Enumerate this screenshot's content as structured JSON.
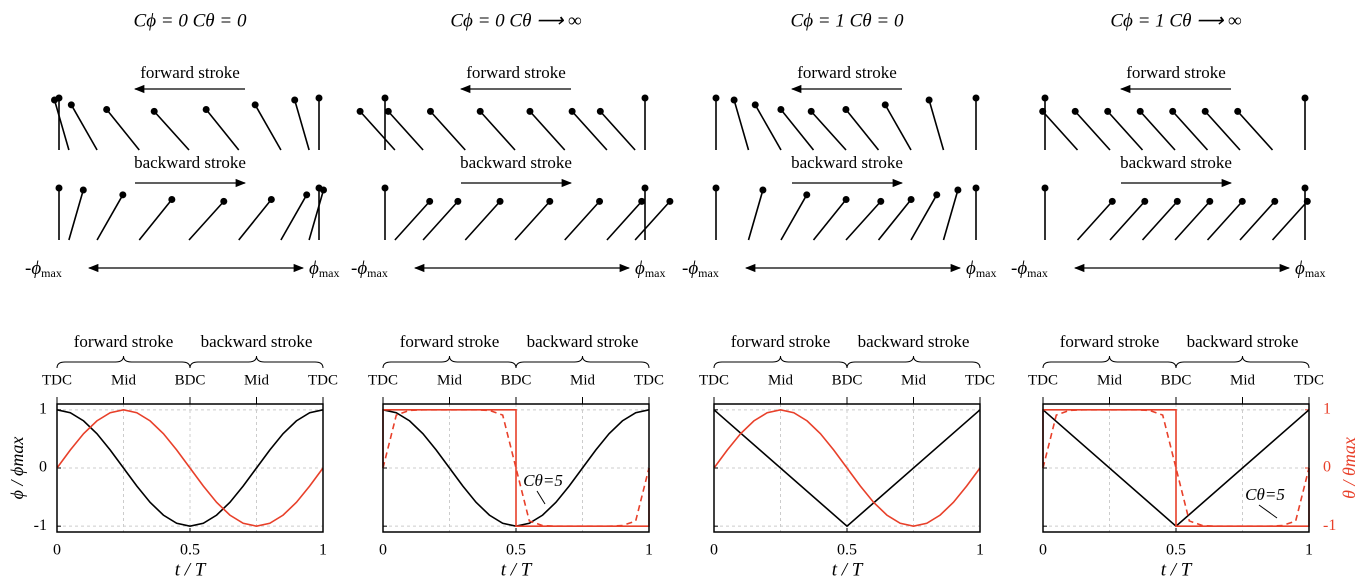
{
  "diagram": {
    "forward": "forward stroke",
    "backward": "backward stroke",
    "left": "-ϕ",
    "right": "ϕ",
    "sub": "max"
  },
  "chart_data": [
    {
      "type": "line",
      "title": "Cϕ = 0   Cθ = 0",
      "phases": [
        "forward stroke",
        "backward stroke"
      ],
      "xlim": [
        0,
        1
      ],
      "xticks": [
        0,
        0.5,
        1
      ],
      "x2ticks": [
        {
          "value": 0,
          "label": "TDC"
        },
        {
          "value": 0.25,
          "label": "Mid"
        },
        {
          "value": 0.5,
          "label": "BDC"
        },
        {
          "value": 0.75,
          "label": "Mid"
        },
        {
          "value": 1,
          "label": "TDC"
        }
      ],
      "xlabel": "t / T",
      "ylim": [
        -1.1,
        1.1
      ],
      "yticks": [
        -1,
        0,
        1
      ],
      "ytick_labels": true,
      "ylabel": "ϕ / ϕmax",
      "grid": true,
      "series": [
        {
          "color": "#000000",
          "x": [
            0,
            0.05,
            0.1,
            0.15,
            0.2,
            0.25,
            0.3,
            0.35,
            0.4,
            0.45,
            0.5,
            0.55,
            0.6,
            0.65,
            0.7,
            0.75,
            0.8,
            0.85,
            0.9,
            0.95,
            1
          ],
          "values": [
            1,
            0.95,
            0.81,
            0.59,
            0.31,
            0,
            -0.31,
            -0.59,
            -0.81,
            -0.95,
            -1,
            -0.95,
            -0.81,
            -0.59,
            -0.31,
            0,
            0.31,
            0.59,
            0.81,
            0.95,
            1
          ]
        },
        {
          "color": "#e8402a",
          "x": [
            0,
            0.05,
            0.1,
            0.15,
            0.2,
            0.25,
            0.3,
            0.35,
            0.4,
            0.45,
            0.5,
            0.55,
            0.6,
            0.65,
            0.7,
            0.75,
            0.8,
            0.85,
            0.9,
            0.95,
            1
          ],
          "values": [
            0,
            0.31,
            0.59,
            0.81,
            0.95,
            1,
            0.95,
            0.81,
            0.59,
            0.31,
            0,
            -0.31,
            -0.59,
            -0.81,
            -0.95,
            -1,
            -0.95,
            -0.81,
            -0.59,
            -0.31,
            0
          ]
        }
      ]
    },
    {
      "type": "line",
      "title": "Cϕ = 0   Cθ ⟶ ∞",
      "phases": [
        "forward stroke",
        "backward stroke"
      ],
      "xlim": [
        0,
        1
      ],
      "xticks": [
        0,
        0.5,
        1
      ],
      "x2ticks": [
        {
          "value": 0,
          "label": "TDC"
        },
        {
          "value": 0.25,
          "label": "Mid"
        },
        {
          "value": 0.5,
          "label": "BDC"
        },
        {
          "value": 0.75,
          "label": "Mid"
        },
        {
          "value": 1,
          "label": "TDC"
        }
      ],
      "xlabel": "t / T",
      "ylim": [
        -1.1,
        1.1
      ],
      "yticks": [
        -1,
        0,
        1
      ],
      "ytick_labels": false,
      "grid": true,
      "annotation": "Cθ=5",
      "series": [
        {
          "color": "#000000",
          "x": [
            0,
            0.05,
            0.1,
            0.15,
            0.2,
            0.25,
            0.3,
            0.35,
            0.4,
            0.45,
            0.5,
            0.55,
            0.6,
            0.65,
            0.7,
            0.75,
            0.8,
            0.85,
            0.9,
            0.95,
            1
          ],
          "values": [
            1,
            0.95,
            0.81,
            0.59,
            0.31,
            0,
            -0.31,
            -0.59,
            -0.81,
            -0.95,
            -1,
            -0.95,
            -0.81,
            -0.59,
            -0.31,
            0,
            0.31,
            0.59,
            0.81,
            0.95,
            1
          ]
        },
        {
          "color": "#e8402a",
          "x": [
            0,
            0,
            0.5,
            0.5,
            1,
            1
          ],
          "values": [
            0,
            1,
            1,
            -1,
            -1,
            0
          ]
        },
        {
          "color": "#e8402a",
          "dash": true,
          "x": [
            0,
            0.05,
            0.1,
            0.15,
            0.2,
            0.25,
            0.3,
            0.35,
            0.4,
            0.45,
            0.5,
            0.55,
            0.6,
            0.65,
            0.7,
            0.75,
            0.8,
            0.85,
            0.9,
            0.95,
            1
          ],
          "values": [
            0,
            0.91,
            0.99,
            1,
            1,
            1,
            1,
            1,
            0.99,
            0.91,
            0,
            -0.91,
            -0.99,
            -1,
            -1,
            -1,
            -1,
            -1,
            -0.99,
            -0.91,
            0
          ]
        }
      ]
    },
    {
      "type": "line",
      "title": "Cϕ = 1   Cθ = 0",
      "phases": [
        "forward stroke",
        "backward stroke"
      ],
      "xlim": [
        0,
        1
      ],
      "xticks": [
        0,
        0.5,
        1
      ],
      "x2ticks": [
        {
          "value": 0,
          "label": "TDC"
        },
        {
          "value": 0.25,
          "label": "Mid"
        },
        {
          "value": 0.5,
          "label": "BDC"
        },
        {
          "value": 0.75,
          "label": "Mid"
        },
        {
          "value": 1,
          "label": "TDC"
        }
      ],
      "xlabel": "t / T",
      "ylim": [
        -1.1,
        1.1
      ],
      "yticks": [
        -1,
        0,
        1
      ],
      "ytick_labels": false,
      "grid": true,
      "series": [
        {
          "color": "#000000",
          "x": [
            0,
            0.5,
            1
          ],
          "values": [
            1,
            -1,
            1
          ]
        },
        {
          "color": "#e8402a",
          "x": [
            0,
            0.05,
            0.1,
            0.15,
            0.2,
            0.25,
            0.3,
            0.35,
            0.4,
            0.45,
            0.5,
            0.55,
            0.6,
            0.65,
            0.7,
            0.75,
            0.8,
            0.85,
            0.9,
            0.95,
            1
          ],
          "values": [
            0,
            0.31,
            0.59,
            0.81,
            0.95,
            1,
            0.95,
            0.81,
            0.59,
            0.31,
            0,
            -0.31,
            -0.59,
            -0.81,
            -0.95,
            -1,
            -0.95,
            -0.81,
            -0.59,
            -0.31,
            0
          ]
        }
      ]
    },
    {
      "type": "line",
      "title": "Cϕ = 1   Cθ ⟶ ∞",
      "phases": [
        "forward stroke",
        "backward stroke"
      ],
      "xlim": [
        0,
        1
      ],
      "xticks": [
        0,
        0.5,
        1
      ],
      "x2ticks": [
        {
          "value": 0,
          "label": "TDC"
        },
        {
          "value": 0.25,
          "label": "Mid"
        },
        {
          "value": 0.5,
          "label": "BDC"
        },
        {
          "value": 0.75,
          "label": "Mid"
        },
        {
          "value": 1,
          "label": "TDC"
        }
      ],
      "xlabel": "t / T",
      "ylim": [
        -1.1,
        1.1
      ],
      "yticks": [
        -1,
        0,
        1
      ],
      "ytick_labels": false,
      "grid": true,
      "annotation": "Cθ=5",
      "y2lim": [
        -1.1,
        1.1
      ],
      "y2ticks": [
        -1,
        0,
        1
      ],
      "y2label": "θ / θmax",
      "y2color": "#e8402a",
      "series": [
        {
          "color": "#000000",
          "x": [
            0,
            0.5,
            1
          ],
          "values": [
            1,
            -1,
            1
          ]
        },
        {
          "color": "#e8402a",
          "axis": "y2",
          "x": [
            0,
            0,
            0.5,
            0.5,
            1,
            1
          ],
          "values": [
            0,
            1,
            1,
            -1,
            -1,
            0
          ]
        },
        {
          "color": "#e8402a",
          "axis": "y2",
          "dash": true,
          "x": [
            0,
            0.05,
            0.1,
            0.15,
            0.2,
            0.25,
            0.3,
            0.35,
            0.4,
            0.45,
            0.5,
            0.55,
            0.6,
            0.65,
            0.7,
            0.75,
            0.8,
            0.85,
            0.9,
            0.95,
            1
          ],
          "values": [
            0,
            0.91,
            0.99,
            1,
            1,
            1,
            1,
            1,
            0.99,
            0.91,
            0,
            -0.91,
            -0.99,
            -1,
            -1,
            -1,
            -1,
            -1,
            -0.99,
            -0.91,
            0
          ]
        }
      ]
    }
  ]
}
